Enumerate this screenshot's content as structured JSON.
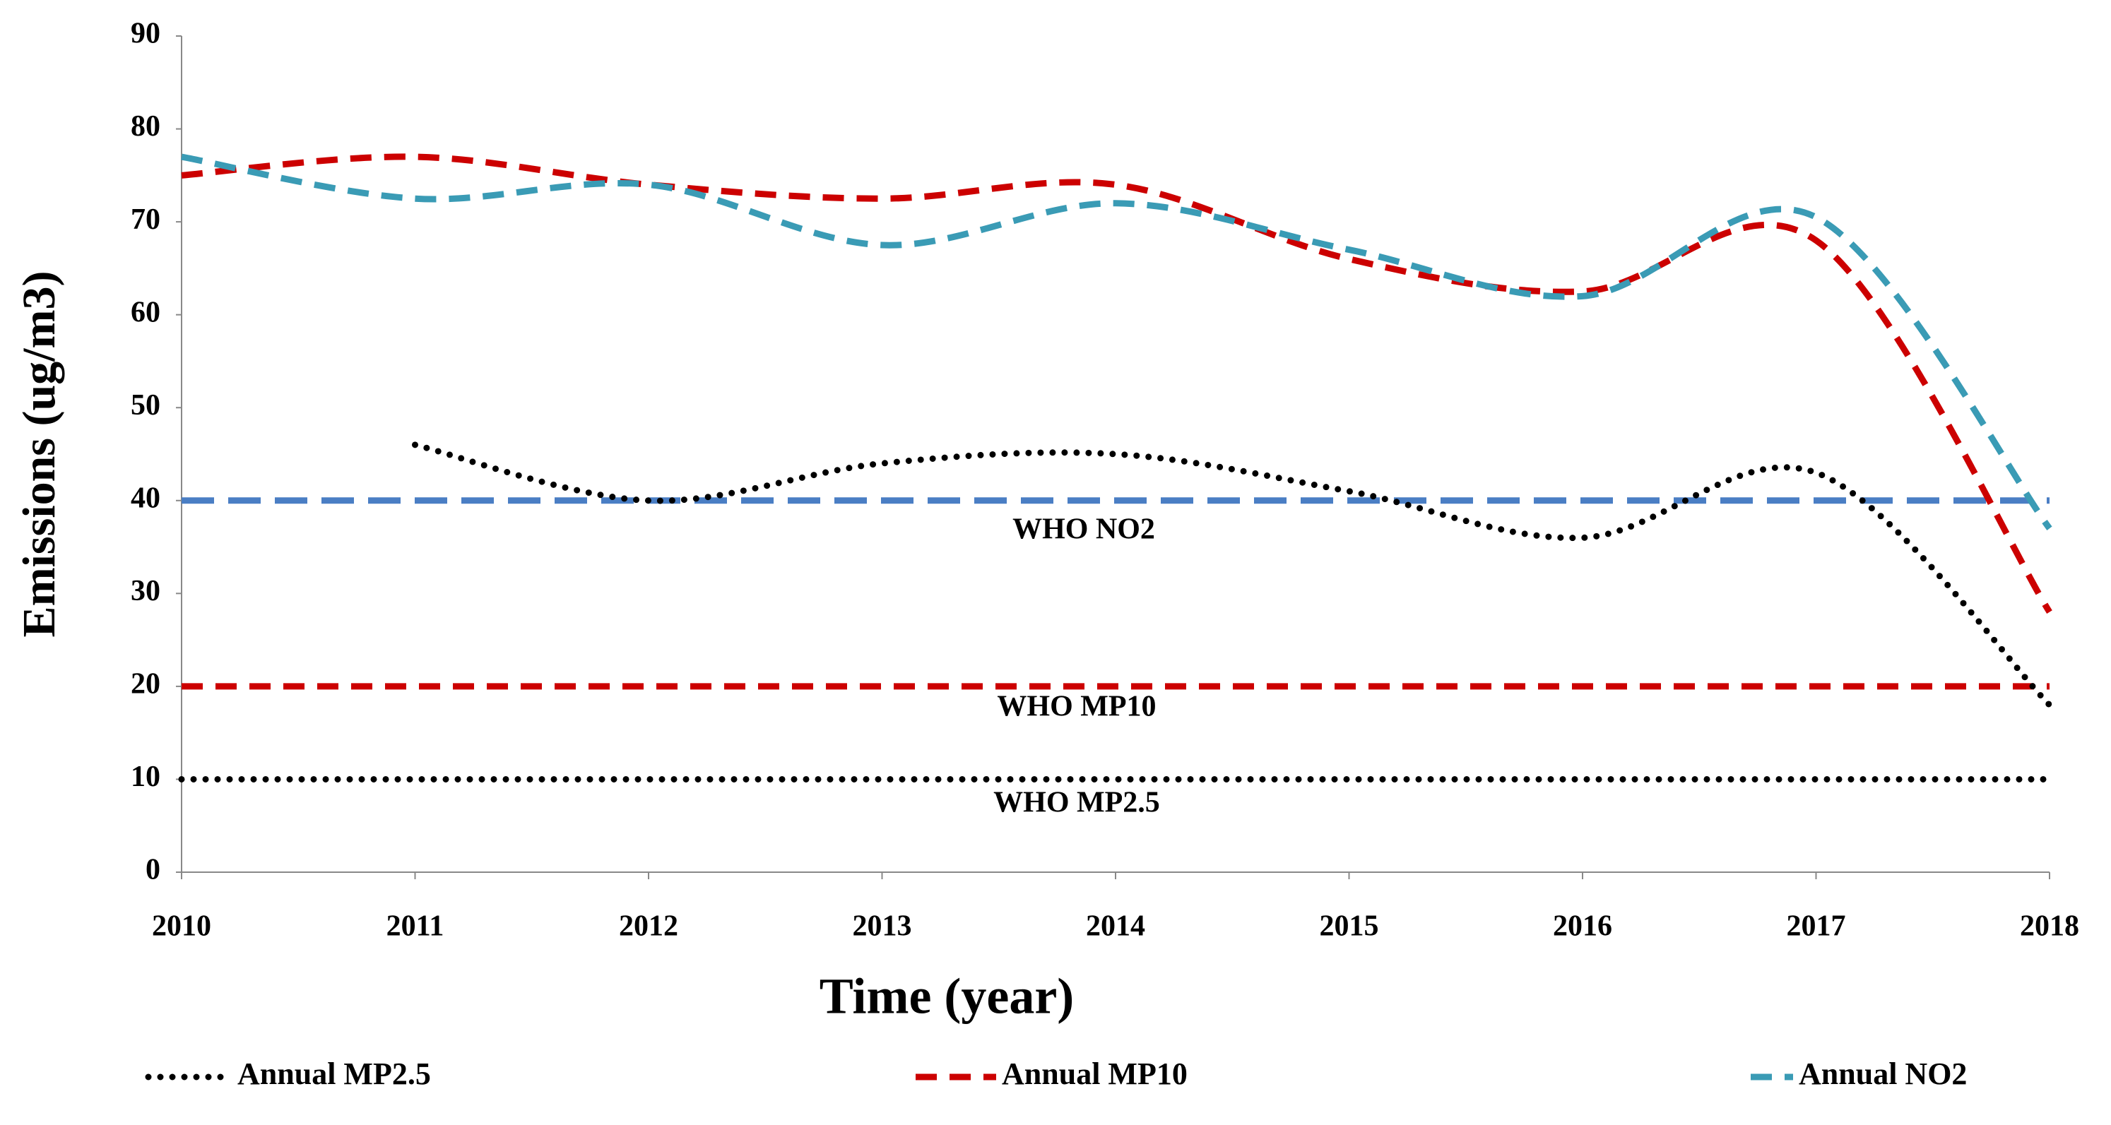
{
  "chart_data": {
    "type": "line",
    "x_label": "Time (year)",
    "y_label": "Emissions (ug/m3)",
    "x": [
      2010,
      2011,
      2012,
      2013,
      2014,
      2015,
      2016,
      2017,
      2018
    ],
    "xlim": [
      2010,
      2018
    ],
    "xticks": [
      2010,
      2011,
      2012,
      2013,
      2014,
      2015,
      2016,
      2017,
      2018
    ],
    "ylim": [
      0,
      90
    ],
    "yticks": [
      0,
      10,
      20,
      30,
      40,
      50,
      60,
      70,
      80,
      90
    ],
    "series": [
      {
        "name": "Annual MP2.5",
        "color": "#000000",
        "style": "dotted",
        "values": [
          null,
          46,
          40,
          44,
          45,
          41,
          36,
          43,
          18
        ]
      },
      {
        "name": "Annual MP10",
        "color": "#cc0000",
        "style": "dashed",
        "values": [
          75,
          77,
          74,
          72.5,
          74,
          66,
          62.5,
          68,
          28
        ]
      },
      {
        "name": "Annual NO2",
        "color": "#3a9bb5",
        "style": "dashed",
        "values": [
          77,
          72.5,
          74,
          67.5,
          72,
          67,
          62,
          70.5,
          37
        ]
      }
    ],
    "reference_lines": [
      {
        "label": "WHO NO2",
        "value": 40,
        "color": "#4a7ec4",
        "style": "longdash"
      },
      {
        "label": "WHO MP10",
        "value": 20,
        "color": "#cc0000",
        "style": "dashed"
      },
      {
        "label": "WHO MP2.5",
        "value": 10,
        "color": "#000000",
        "style": "dotted"
      }
    ]
  }
}
